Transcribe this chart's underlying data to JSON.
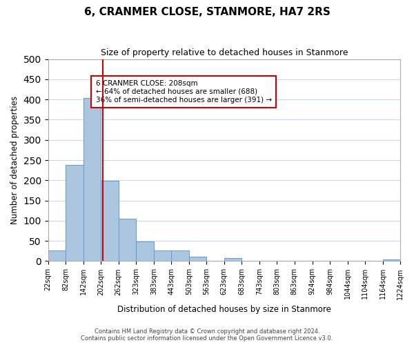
{
  "title": "6, CRANMER CLOSE, STANMORE, HA7 2RS",
  "subtitle": "Size of property relative to detached houses in Stanmore",
  "xlabel": "Distribution of detached houses by size in Stanmore",
  "ylabel": "Number of detached properties",
  "bar_edges": [
    22,
    82,
    142,
    202,
    262,
    323,
    383,
    443,
    503,
    563,
    623,
    683,
    743,
    803,
    863,
    924,
    984,
    1044,
    1104,
    1164,
    1224
  ],
  "bar_heights": [
    27,
    238,
    404,
    199,
    105,
    48,
    26,
    26,
    11,
    0,
    8,
    0,
    0,
    0,
    0,
    0,
    0,
    0,
    0,
    4
  ],
  "bar_color": "#adc6e0",
  "bar_edge_color": "#5b9bd5",
  "property_line_x": 208,
  "property_line_color": "#cc0000",
  "annotation_title": "6 CRANMER CLOSE: 208sqm",
  "annotation_line1": "← 64% of detached houses are smaller (688)",
  "annotation_line2": "36% of semi-detached houses are larger (391) →",
  "annotation_box_color": "#cc0000",
  "ylim": [
    0,
    500
  ],
  "yticks": [
    0,
    50,
    100,
    150,
    200,
    250,
    300,
    350,
    400,
    450,
    500
  ],
  "tick_labels": [
    "22sqm",
    "82sqm",
    "142sqm",
    "202sqm",
    "262sqm",
    "323sqm",
    "383sqm",
    "443sqm",
    "503sqm",
    "563sqm",
    "623sqm",
    "683sqm",
    "743sqm",
    "803sqm",
    "863sqm",
    "924sqm",
    "984sqm",
    "1044sqm",
    "1104sqm",
    "1164sqm",
    "1224sqm"
  ],
  "footer_line1": "Contains HM Land Registry data © Crown copyright and database right 2024.",
  "footer_line2": "Contains public sector information licensed under the Open Government Licence v3.0.",
  "bg_color": "#ffffff",
  "grid_color": "#c8d8e8"
}
